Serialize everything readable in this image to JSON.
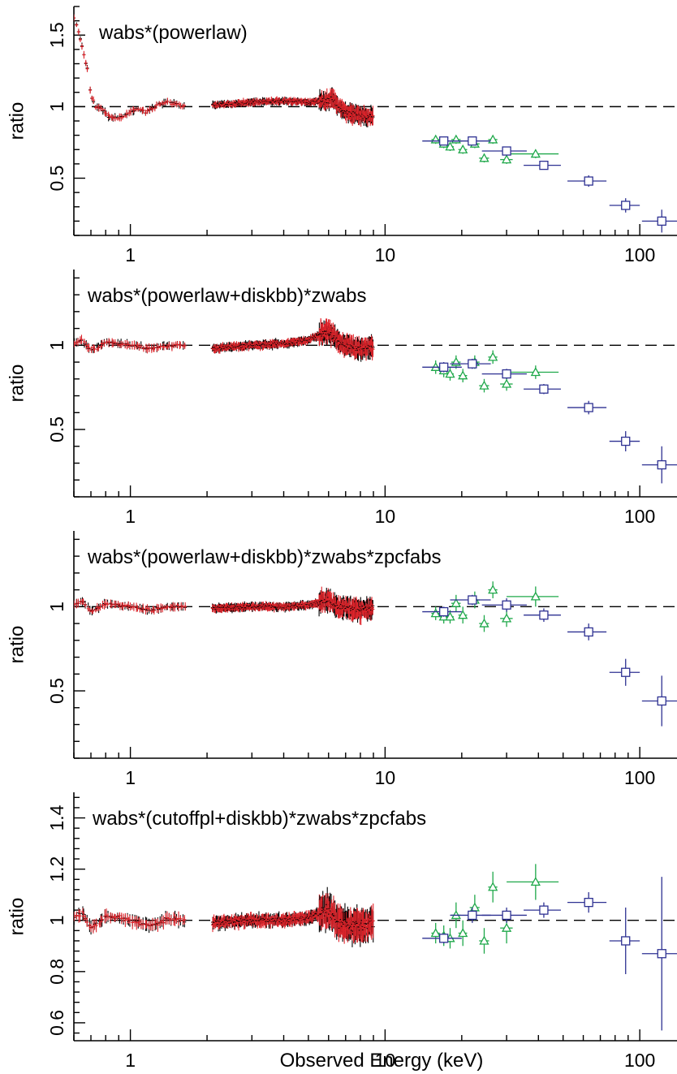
{
  "figure": {
    "xlabel": "Observed Energy (keV)"
  },
  "colors": {
    "xmm_black": "#000000",
    "xmm_red": "#e0242b",
    "bat_green": "#1fa84a",
    "pca_blue": "#2e3192",
    "axis": "#000000"
  },
  "chart_data": [
    {
      "type": "scatter",
      "title": "wabs*(powerlaw)",
      "ylabel": "ratio",
      "xscale": "log",
      "xlim": [
        0.6,
        140
      ],
      "ylim": [
        0.1,
        1.7
      ],
      "xticks": [
        1,
        10,
        100
      ],
      "xtick_labels": [
        "1",
        "10",
        "100"
      ],
      "yticks": [
        0.5,
        1,
        1.5
      ],
      "ytick_labels": [
        "0.5",
        "1",
        "1.5"
      ],
      "reference_line": 1,
      "soft_profile": [
        [
          0.6,
          1.62
        ],
        [
          0.62,
          1.55
        ],
        [
          0.65,
          1.4
        ],
        [
          0.68,
          1.25
        ],
        [
          0.7,
          1.08
        ],
        [
          0.73,
          1.0
        ],
        [
          0.77,
          0.99
        ],
        [
          0.82,
          0.93
        ],
        [
          0.87,
          0.92
        ],
        [
          0.93,
          0.93
        ],
        [
          1.0,
          0.96
        ],
        [
          1.05,
          0.98
        ],
        [
          1.1,
          0.98
        ],
        [
          1.15,
          0.96
        ],
        [
          1.2,
          0.98
        ],
        [
          1.3,
          1.02
        ],
        [
          1.4,
          1.03
        ],
        [
          1.5,
          1.02
        ],
        [
          1.65,
          1.0
        ],
        [
          2.1,
          1.01
        ],
        [
          3.0,
          1.03
        ],
        [
          4.0,
          1.04
        ],
        [
          5.0,
          1.03
        ],
        [
          5.8,
          1.04
        ],
        [
          6.2,
          1.06
        ],
        [
          6.6,
          1.0
        ],
        [
          7.2,
          0.95
        ],
        [
          8.0,
          0.94
        ],
        [
          9.0,
          0.93
        ]
      ],
      "series": [
        {
          "name": "BAT",
          "marker": "triangle",
          "color": "#1fa84a",
          "points": [
            [
              15.8,
              0.77,
              0.6,
              0.03
            ],
            [
              17.0,
              0.74,
              0.6,
              0.03
            ],
            [
              18.0,
              0.72,
              0.6,
              0.03
            ],
            [
              19.0,
              0.77,
              0.8,
              0.03
            ],
            [
              20.2,
              0.7,
              0.8,
              0.03
            ],
            [
              22.5,
              0.74,
              1.0,
              0.03
            ],
            [
              24.5,
              0.64,
              1.1,
              0.03
            ],
            [
              26.5,
              0.77,
              1.1,
              0.03
            ],
            [
              30.0,
              0.63,
              1.7,
              0.03
            ],
            [
              39.0,
              0.67,
              9.0,
              0.03
            ]
          ]
        },
        {
          "name": "PCA",
          "marker": "square",
          "color": "#2e3192",
          "points": [
            [
              17.0,
              0.76,
              3.0,
              0.03
            ],
            [
              22.0,
              0.76,
              4.0,
              0.03
            ],
            [
              30.0,
              0.69,
              6.0,
              0.03
            ],
            [
              42.0,
              0.59,
              7.0,
              0.03
            ],
            [
              63.0,
              0.48,
              11.0,
              0.04
            ],
            [
              88.0,
              0.31,
              12.0,
              0.05
            ],
            [
              122.0,
              0.2,
              20.0,
              0.08
            ]
          ]
        }
      ]
    },
    {
      "type": "scatter",
      "title": "wabs*(powerlaw+diskbb)*zwabs",
      "ylabel": "ratio",
      "xscale": "log",
      "xlim": [
        0.6,
        140
      ],
      "ylim": [
        0.1,
        1.45
      ],
      "xticks": [
        1,
        10,
        100
      ],
      "xtick_labels": [
        "1",
        "10",
        "100"
      ],
      "yticks": [
        0.5,
        1
      ],
      "ytick_labels": [
        "0.5",
        "1"
      ],
      "reference_line": 1,
      "soft_profile": [
        [
          0.6,
          1.01
        ],
        [
          0.65,
          1.03
        ],
        [
          0.7,
          0.97
        ],
        [
          0.75,
          0.99
        ],
        [
          0.8,
          1.02
        ],
        [
          0.9,
          1.01
        ],
        [
          1.0,
          1.0
        ],
        [
          1.1,
          0.99
        ],
        [
          1.2,
          0.98
        ],
        [
          1.3,
          0.99
        ],
        [
          1.4,
          1.0
        ],
        [
          1.6,
          1.0
        ],
        [
          2.1,
          0.98
        ],
        [
          3.0,
          1.0
        ],
        [
          4.0,
          1.01
        ],
        [
          5.0,
          1.03
        ],
        [
          6.0,
          1.09
        ],
        [
          6.5,
          1.03
        ],
        [
          7.0,
          1.0
        ],
        [
          8.0,
          0.98
        ],
        [
          9.0,
          0.99
        ]
      ],
      "series": [
        {
          "name": "BAT",
          "marker": "triangle",
          "color": "#1fa84a",
          "points": [
            [
              15.8,
              0.87,
              0.6,
              0.04
            ],
            [
              17.0,
              0.85,
              0.6,
              0.04
            ],
            [
              18.0,
              0.83,
              0.6,
              0.04
            ],
            [
              19.0,
              0.9,
              0.8,
              0.04
            ],
            [
              20.2,
              0.82,
              0.8,
              0.04
            ],
            [
              22.5,
              0.9,
              1.0,
              0.04
            ],
            [
              24.5,
              0.76,
              1.1,
              0.04
            ],
            [
              26.5,
              0.93,
              1.1,
              0.04
            ],
            [
              30.0,
              0.77,
              1.7,
              0.04
            ],
            [
              39.0,
              0.84,
              9.0,
              0.04
            ]
          ]
        },
        {
          "name": "PCA",
          "marker": "square",
          "color": "#2e3192",
          "points": [
            [
              17.0,
              0.87,
              3.0,
              0.03
            ],
            [
              22.0,
              0.89,
              4.0,
              0.03
            ],
            [
              30.0,
              0.83,
              6.0,
              0.03
            ],
            [
              42.0,
              0.74,
              7.0,
              0.03
            ],
            [
              63.0,
              0.63,
              11.0,
              0.04
            ],
            [
              88.0,
              0.43,
              12.0,
              0.06
            ],
            [
              122.0,
              0.29,
              20.0,
              0.11
            ]
          ]
        }
      ]
    },
    {
      "type": "scatter",
      "title": "wabs*(powerlaw+diskbb)*zwabs*zpcfabs",
      "ylabel": "ratio",
      "xscale": "log",
      "xlim": [
        0.6,
        140
      ],
      "ylim": [
        0.1,
        1.45
      ],
      "xticks": [
        1,
        10,
        100
      ],
      "xtick_labels": [
        "1",
        "10",
        "100"
      ],
      "yticks": [
        0.5,
        1
      ],
      "ytick_labels": [
        "0.5",
        "1"
      ],
      "reference_line": 1,
      "soft_profile": [
        [
          0.6,
          1.01
        ],
        [
          0.65,
          1.03
        ],
        [
          0.7,
          0.97
        ],
        [
          0.75,
          0.99
        ],
        [
          0.8,
          1.02
        ],
        [
          0.9,
          1.01
        ],
        [
          1.0,
          1.0
        ],
        [
          1.1,
          0.99
        ],
        [
          1.2,
          0.98
        ],
        [
          1.3,
          0.99
        ],
        [
          1.4,
          1.0
        ],
        [
          1.6,
          1.0
        ],
        [
          2.1,
          0.99
        ],
        [
          3.0,
          1.0
        ],
        [
          4.0,
          1.0
        ],
        [
          5.0,
          1.01
        ],
        [
          6.0,
          1.04
        ],
        [
          6.5,
          1.0
        ],
        [
          7.0,
          0.99
        ],
        [
          8.0,
          0.98
        ],
        [
          9.0,
          0.99
        ]
      ],
      "series": [
        {
          "name": "BAT",
          "marker": "triangle",
          "color": "#1fa84a",
          "points": [
            [
              15.8,
              0.96,
              0.6,
              0.04
            ],
            [
              17.0,
              0.94,
              0.6,
              0.04
            ],
            [
              18.0,
              0.94,
              0.6,
              0.04
            ],
            [
              19.0,
              1.02,
              0.8,
              0.05
            ],
            [
              20.2,
              0.95,
              0.8,
              0.05
            ],
            [
              22.5,
              1.04,
              1.0,
              0.05
            ],
            [
              24.5,
              0.9,
              1.1,
              0.05
            ],
            [
              26.5,
              1.1,
              1.1,
              0.05
            ],
            [
              30.0,
              0.93,
              1.7,
              0.05
            ],
            [
              39.0,
              1.06,
              9.0,
              0.06
            ]
          ]
        },
        {
          "name": "PCA",
          "marker": "square",
          "color": "#2e3192",
          "points": [
            [
              17.0,
              0.97,
              3.0,
              0.03
            ],
            [
              22.0,
              1.04,
              4.0,
              0.03
            ],
            [
              30.0,
              1.01,
              6.0,
              0.04
            ],
            [
              42.0,
              0.95,
              7.0,
              0.04
            ],
            [
              63.0,
              0.85,
              11.0,
              0.05
            ],
            [
              88.0,
              0.61,
              12.0,
              0.08
            ],
            [
              122.0,
              0.44,
              20.0,
              0.15
            ]
          ]
        }
      ]
    },
    {
      "type": "scatter",
      "title": "wabs*(cutoffpl+diskbb)*zwabs*zpcfabs",
      "ylabel": "ratio",
      "xscale": "log",
      "xlim": [
        0.6,
        140
      ],
      "ylim": [
        0.53,
        1.5
      ],
      "xticks": [
        1,
        10,
        100
      ],
      "xtick_labels": [
        "1",
        "10",
        "100"
      ],
      "yticks": [
        0.6,
        0.8,
        1,
        1.2,
        1.4
      ],
      "ytick_labels": [
        "0.6",
        "0.8",
        "1",
        "1.2",
        "1.4"
      ],
      "reference_line": 1,
      "soft_profile": [
        [
          0.6,
          1.01
        ],
        [
          0.65,
          1.03
        ],
        [
          0.7,
          0.97
        ],
        [
          0.75,
          0.99
        ],
        [
          0.8,
          1.02
        ],
        [
          0.9,
          1.01
        ],
        [
          1.0,
          1.0
        ],
        [
          1.1,
          0.99
        ],
        [
          1.2,
          0.98
        ],
        [
          1.3,
          0.99
        ],
        [
          1.4,
          1.01
        ],
        [
          1.6,
          1.0
        ],
        [
          2.1,
          0.99
        ],
        [
          3.0,
          1.0
        ],
        [
          4.0,
          1.0
        ],
        [
          5.0,
          1.01
        ],
        [
          6.0,
          1.04
        ],
        [
          6.5,
          1.0
        ],
        [
          7.0,
          0.98
        ],
        [
          8.0,
          0.98
        ],
        [
          9.0,
          0.99
        ]
      ],
      "series": [
        {
          "name": "BAT",
          "marker": "triangle",
          "color": "#1fa84a",
          "points": [
            [
              15.8,
              0.95,
              0.6,
              0.04
            ],
            [
              17.0,
              0.94,
              0.6,
              0.04
            ],
            [
              18.0,
              0.93,
              0.6,
              0.04
            ],
            [
              19.0,
              1.02,
              0.8,
              0.05
            ],
            [
              20.2,
              0.95,
              0.8,
              0.05
            ],
            [
              22.5,
              1.05,
              1.0,
              0.05
            ],
            [
              24.5,
              0.92,
              1.1,
              0.05
            ],
            [
              26.5,
              1.13,
              1.1,
              0.06
            ],
            [
              30.0,
              0.97,
              1.7,
              0.06
            ],
            [
              39.0,
              1.15,
              9.0,
              0.07
            ]
          ]
        },
        {
          "name": "PCA",
          "marker": "square",
          "color": "#2e3192",
          "points": [
            [
              17.0,
              0.93,
              3.0,
              0.02
            ],
            [
              22.0,
              1.02,
              4.0,
              0.03
            ],
            [
              30.0,
              1.02,
              6.0,
              0.03
            ],
            [
              42.0,
              1.04,
              7.0,
              0.03
            ],
            [
              63.0,
              1.07,
              11.0,
              0.04
            ],
            [
              88.0,
              0.92,
              12.0,
              0.13
            ],
            [
              122.0,
              0.87,
              20.0,
              0.3
            ]
          ]
        }
      ]
    }
  ]
}
